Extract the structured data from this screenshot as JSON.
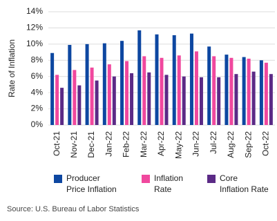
{
  "chart_data": {
    "type": "bar",
    "y_label": "Rate of Inflation",
    "source": "Source: U.S. Bureau of Labor Statistics",
    "categories": [
      "Oct-21",
      "Nov-21",
      "Dec-21",
      "Jan-22",
      "Feb-22",
      "Mar-22",
      "Apr-22",
      "May-22",
      "Jun-22",
      "Jul-22",
      "Aug-22",
      "Sep-22",
      "Oct-22"
    ],
    "series": [
      {
        "name": "Producer Price Inflation",
        "color": "#0d47a1",
        "values": [
          8.9,
          9.9,
          10.0,
          10.1,
          10.4,
          11.7,
          11.2,
          11.1,
          11.3,
          9.7,
          8.7,
          8.4,
          8.0
        ]
      },
      {
        "name": "Inflation Rate",
        "color": "#f0489e",
        "values": [
          6.2,
          6.8,
          7.1,
          7.5,
          7.9,
          8.5,
          8.3,
          8.6,
          9.1,
          8.5,
          8.3,
          8.2,
          7.7
        ]
      },
      {
        "name": "Core Inflation Rate",
        "color": "#5b2a86",
        "values": [
          4.6,
          4.9,
          5.5,
          6.0,
          6.4,
          6.5,
          6.2,
          6.0,
          5.9,
          5.9,
          6.3,
          6.6,
          6.3
        ]
      }
    ],
    "ylim": [
      0,
      14
    ],
    "yticks": [
      {
        "value": 0,
        "label": "0%"
      },
      {
        "value": 2,
        "label": "2%"
      },
      {
        "value": 4,
        "label": "4%"
      },
      {
        "value": 6,
        "label": "6%"
      },
      {
        "value": 8,
        "label": "8%"
      },
      {
        "value": 10,
        "label": "10%"
      },
      {
        "value": 12,
        "label": "12%"
      },
      {
        "value": 14,
        "label": "14%"
      }
    ],
    "grid": true
  }
}
